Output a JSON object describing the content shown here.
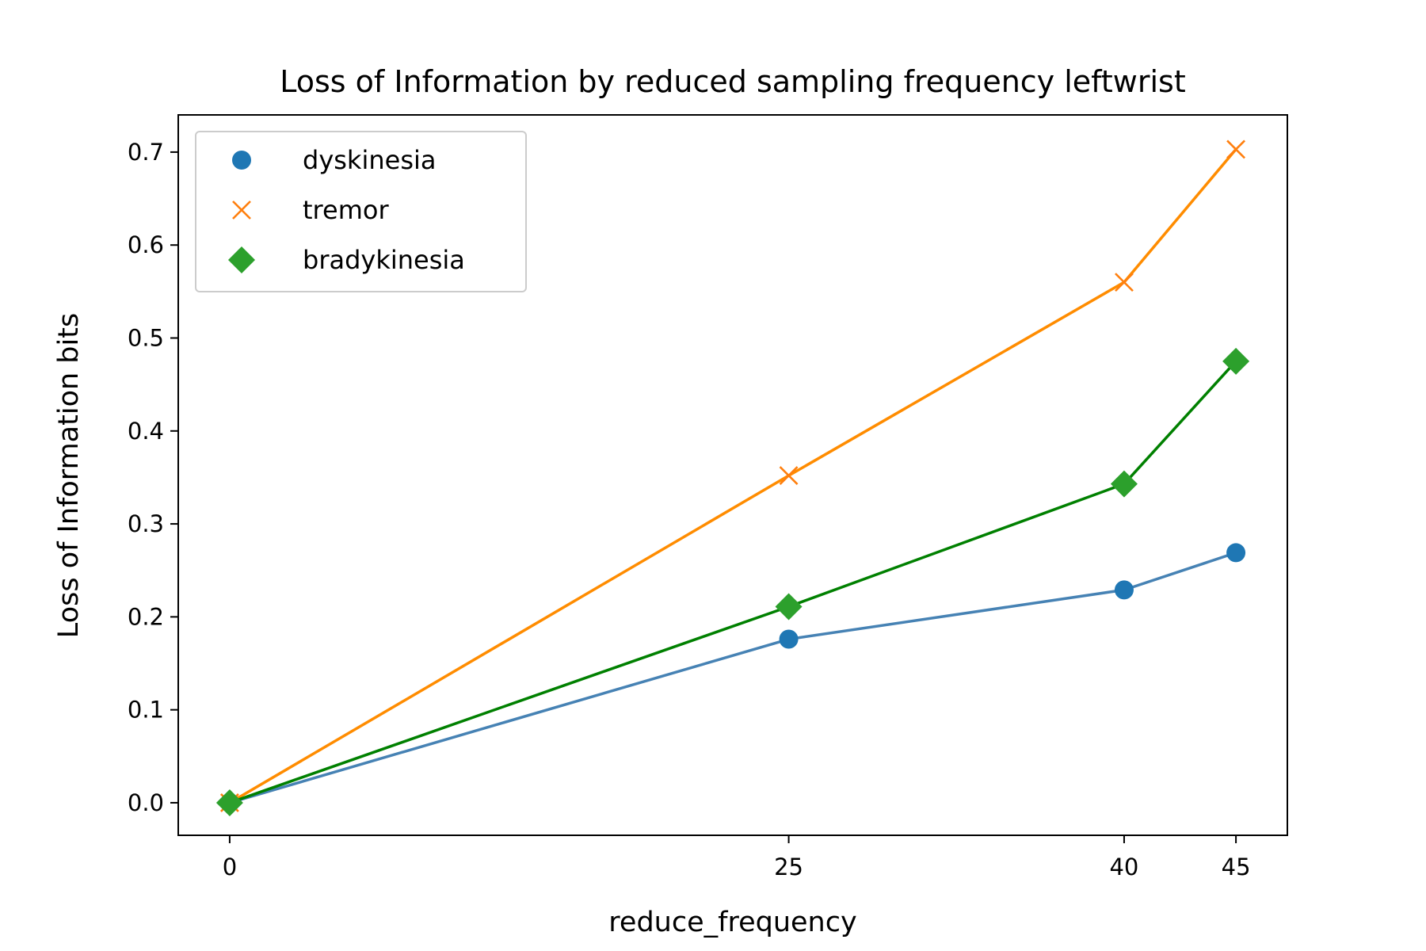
{
  "chart_data": {
    "type": "line",
    "title": "Loss of Information by reduced sampling frequency leftwrist",
    "xlabel": "reduce_frequency",
    "ylabel": "Loss of Information bits",
    "x": [
      0,
      25,
      40,
      45
    ],
    "xticks": [
      "0",
      "25",
      "40",
      "45"
    ],
    "yticks": [
      "0.0",
      "0.1",
      "0.2",
      "0.3",
      "0.4",
      "0.5",
      "0.6",
      "0.7"
    ],
    "xlim": [
      -2.3,
      47.3
    ],
    "ylim": [
      -0.035,
      0.74
    ],
    "grid": false,
    "legend_position": "top-left",
    "series": [
      {
        "name": "dyskinesia",
        "values": [
          0.0,
          0.176,
          0.229,
          0.269
        ],
        "marker": "circle",
        "marker_color": "#1f77b4",
        "line_color": "#4682b4"
      },
      {
        "name": "tremor",
        "values": [
          0.0,
          0.352,
          0.56,
          0.703
        ],
        "marker": "x",
        "marker_color": "#ff7f0e",
        "line_color": "#ff8c00"
      },
      {
        "name": "bradykinesia",
        "values": [
          0.0,
          0.211,
          0.343,
          0.475
        ],
        "marker": "diamond",
        "marker_color": "#2ca02c",
        "line_color": "#008000"
      }
    ]
  }
}
